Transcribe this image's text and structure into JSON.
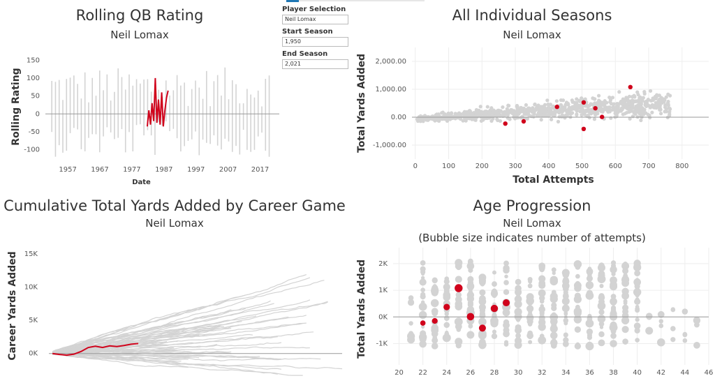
{
  "controls": {
    "player_label": "Player Selection",
    "player_value": "Neil Lomax",
    "start_label": "Start Season",
    "start_value": "1,950",
    "end_label": "End Season",
    "end_value": "2,021"
  },
  "panels": {
    "rolling": {
      "title": "Rolling QB Rating",
      "subtitle": "Neil Lomax"
    },
    "seasons": {
      "title": "All Individual Seasons",
      "subtitle": "Neil Lomax"
    },
    "cumulative": {
      "title": "Cumulative Total Yards Added by Career Game",
      "subtitle": "Neil Lomax"
    },
    "age": {
      "title": "Age Progression",
      "subtitle": "Neil Lomax",
      "subtitle2": "(Bubble size indicates number of attempts)"
    }
  },
  "colors": {
    "highlight": "#d0021b",
    "background_marks": "#d3d3d3",
    "zero_line": "#999999"
  },
  "chart_data": [
    {
      "id": "rolling",
      "type": "line",
      "ylabel": "Rolling Rating",
      "xlabel": "Date",
      "ylim": [
        -130,
        170
      ],
      "yticks": [
        150,
        100,
        50,
        0,
        -50,
        -100
      ],
      "xlim": [
        1950,
        2023
      ],
      "xticks": [
        1957,
        1967,
        1977,
        1987,
        1997,
        2007,
        2017
      ],
      "highlight": {
        "x": [
          1981.8,
          1982.3,
          1982.8,
          1983.3,
          1983.8,
          1984.3,
          1984.8,
          1985.3,
          1985.8,
          1986.3,
          1986.8,
          1987.3,
          1987.8,
          1988.3
        ],
        "y": [
          -35,
          10,
          -30,
          30,
          -20,
          100,
          -25,
          40,
          -30,
          60,
          -35,
          10,
          45,
          65
        ]
      }
    },
    {
      "id": "seasons",
      "type": "scatter",
      "xlabel": "Total Attempts",
      "ylabel": "Total Yards Added",
      "xlim": [
        -10,
        880
      ],
      "ylim": [
        -1500,
        2500
      ],
      "xticks": [
        0,
        100,
        200,
        300,
        400,
        500,
        600,
        700,
        800
      ],
      "yticks": [
        2000,
        1000,
        0,
        -1000
      ],
      "ytick_labels": [
        "2,000.00",
        "1,000.00",
        "0.00",
        "-1,000.00"
      ],
      "highlight": {
        "x": [
          270,
          325,
          425,
          505,
          505,
          540,
          560,
          645
        ],
        "y": [
          -230,
          -150,
          370,
          530,
          -420,
          320,
          10,
          1080
        ]
      }
    },
    {
      "id": "cumulative",
      "type": "line",
      "ylabel": "Career Yards Added",
      "xlim": [
        -5,
        405
      ],
      "ylim": [
        -3500,
        17000
      ],
      "yticks": [
        15000,
        10000,
        5000,
        0
      ],
      "ytick_labels": [
        "15K",
        "10K",
        "5K",
        "0K"
      ],
      "highlight": {
        "x": [
          0,
          10,
          20,
          30,
          40,
          50,
          60,
          70,
          80,
          90,
          100,
          110,
          120
        ],
        "y": [
          0,
          -150,
          -250,
          -100,
          300,
          900,
          1100,
          900,
          1150,
          1050,
          1200,
          1400,
          1500
        ]
      }
    },
    {
      "id": "age",
      "type": "scatter",
      "ylabel": "Total Yards Added",
      "xlim": [
        19.5,
        46
      ],
      "ylim": [
        -1800,
        2600
      ],
      "xticks": [
        20,
        22,
        24,
        26,
        28,
        30,
        32,
        34,
        36,
        38,
        40,
        42,
        44,
        46
      ],
      "yticks": [
        2000,
        1000,
        0,
        -1000
      ],
      "ytick_labels": [
        "2K",
        "1K",
        "0K",
        "-1K"
      ],
      "highlight": {
        "x": [
          22,
          23,
          24,
          25,
          26,
          27,
          28,
          29
        ],
        "y": [
          -230,
          -150,
          370,
          1080,
          10,
          -420,
          320,
          530
        ],
        "size": [
          270,
          325,
          425,
          645,
          560,
          505,
          540,
          505
        ]
      }
    }
  ]
}
